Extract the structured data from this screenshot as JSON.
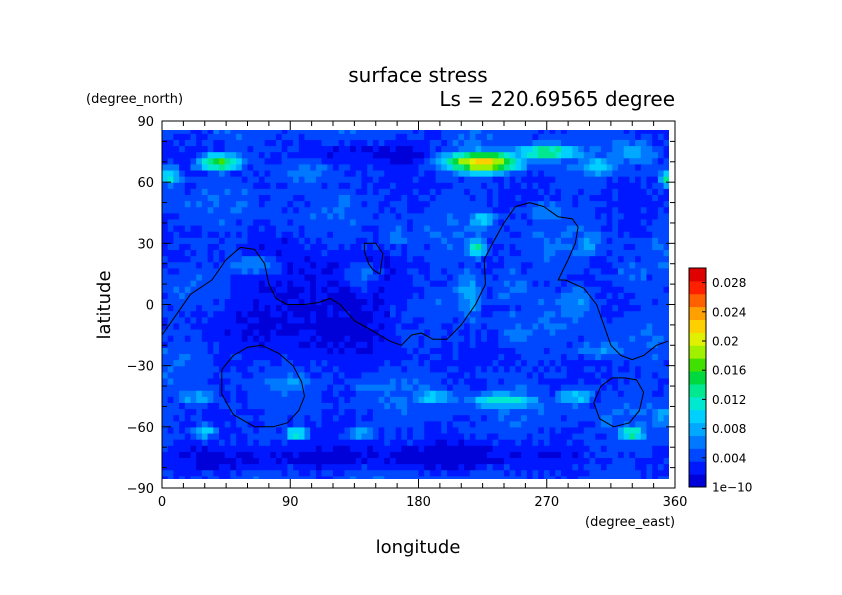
{
  "chart_data": {
    "type": "heatmap",
    "title": "surface stress",
    "subtitle": "Ls = 220.69565 degree",
    "xlabel": "longitude",
    "ylabel": "latitude",
    "xunit": "(degree_east)",
    "yunit": "(degree_north)",
    "xlim": [
      0,
      360
    ],
    "ylim": [
      -90,
      90
    ],
    "xticks": [
      "0",
      "90",
      "180",
      "270",
      "360"
    ],
    "yticks": [
      "90",
      "60",
      "30",
      "0",
      "−30",
      "−60",
      "−90"
    ],
    "colorbar": {
      "min": 0,
      "max": 0.03,
      "labels": [
        "0.028",
        "0.024",
        "0.02",
        "0.016",
        "0.012",
        "0.008",
        "0.004",
        "1e−10"
      ],
      "colors": [
        "#0000d8",
        "#0018ff",
        "#0048ff",
        "#0078ff",
        "#00a8ff",
        "#00d0ff",
        "#00e8d0",
        "#00e890",
        "#00d840",
        "#40e000",
        "#a0f000",
        "#e0f000",
        "#ffd000",
        "#ffa000",
        "#ff6000",
        "#ff2000",
        "#e00000"
      ]
    },
    "background_value": 0.004,
    "hotspots": [
      {
        "lon": 40,
        "lat": 70,
        "value": 0.016,
        "spread_lon": 18,
        "spread_lat": 5
      },
      {
        "lon": 5,
        "lat": 63,
        "value": 0.011,
        "spread_lon": 12,
        "spread_lat": 6
      },
      {
        "lon": 225,
        "lat": 70,
        "value": 0.022,
        "spread_lon": 30,
        "spread_lat": 6
      },
      {
        "lon": 270,
        "lat": 75,
        "value": 0.014,
        "spread_lon": 30,
        "spread_lat": 5
      },
      {
        "lon": 305,
        "lat": 68,
        "value": 0.01,
        "spread_lon": 18,
        "spread_lat": 6
      },
      {
        "lon": 355,
        "lat": 62,
        "value": 0.014,
        "spread_lon": 6,
        "spread_lat": 5
      },
      {
        "lon": 330,
        "lat": 75,
        "value": 0.008,
        "spread_lon": 25,
        "spread_lat": 8
      },
      {
        "lon": 100,
        "lat": 65,
        "value": 0.006,
        "spread_lon": 40,
        "spread_lat": 10
      },
      {
        "lon": 225,
        "lat": 42,
        "value": 0.011,
        "spread_lon": 12,
        "spread_lat": 5
      },
      {
        "lon": 270,
        "lat": 45,
        "value": 0.007,
        "spread_lon": 20,
        "spread_lat": 8
      },
      {
        "lon": 220,
        "lat": 28,
        "value": 0.013,
        "spread_lon": 8,
        "spread_lat": 6
      },
      {
        "lon": 215,
        "lat": 5,
        "value": 0.008,
        "spread_lon": 14,
        "spread_lat": 18
      },
      {
        "lon": 245,
        "lat": 10,
        "value": 0.006,
        "spread_lon": 20,
        "spread_lat": 15
      },
      {
        "lon": 290,
        "lat": 0,
        "value": 0.007,
        "spread_lon": 25,
        "spread_lat": 12
      },
      {
        "lon": 330,
        "lat": 15,
        "value": 0.006,
        "spread_lon": 20,
        "spread_lat": 12
      },
      {
        "lon": 300,
        "lat": 30,
        "value": 0.007,
        "spread_lon": 18,
        "spread_lat": 10
      },
      {
        "lon": 165,
        "lat": 35,
        "value": 0.005,
        "spread_lon": 25,
        "spread_lat": 15
      },
      {
        "lon": 250,
        "lat": -15,
        "value": 0.007,
        "spread_lon": 18,
        "spread_lat": 8
      },
      {
        "lon": 310,
        "lat": -22,
        "value": 0.007,
        "spread_lon": 25,
        "spread_lat": 6
      },
      {
        "lon": 240,
        "lat": -47,
        "value": 0.012,
        "spread_lon": 30,
        "spread_lat": 5
      },
      {
        "lon": 190,
        "lat": -45,
        "value": 0.009,
        "spread_lon": 22,
        "spread_lat": 6
      },
      {
        "lon": 290,
        "lat": -45,
        "value": 0.009,
        "spread_lon": 18,
        "spread_lat": 6
      },
      {
        "lon": 150,
        "lat": -40,
        "value": 0.006,
        "spread_lon": 25,
        "spread_lat": 8
      },
      {
        "lon": 25,
        "lat": -45,
        "value": 0.008,
        "spread_lon": 20,
        "spread_lat": 6
      },
      {
        "lon": 90,
        "lat": -38,
        "value": 0.007,
        "spread_lon": 30,
        "spread_lat": 6
      },
      {
        "lon": 30,
        "lat": -62,
        "value": 0.01,
        "spread_lon": 12,
        "spread_lat": 4
      },
      {
        "lon": 95,
        "lat": -63,
        "value": 0.014,
        "spread_lon": 10,
        "spread_lat": 3
      },
      {
        "lon": 140,
        "lat": -63,
        "value": 0.008,
        "spread_lon": 15,
        "spread_lat": 4
      },
      {
        "lon": 330,
        "lat": -63,
        "value": 0.016,
        "spread_lon": 10,
        "spread_lat": 3
      },
      {
        "lon": 350,
        "lat": -55,
        "value": 0.008,
        "spread_lon": 10,
        "spread_lat": 8
      },
      {
        "lon": 60,
        "lat": 20,
        "value": 0.006,
        "spread_lon": 30,
        "spread_lat": 8
      },
      {
        "lon": 140,
        "lat": 15,
        "value": 0.005,
        "spread_lon": 20,
        "spread_lat": 10
      },
      {
        "lon": 350,
        "lat": 30,
        "value": 0.006,
        "spread_lon": 12,
        "spread_lat": 10
      }
    ],
    "low_zones": [
      {
        "lon": 110,
        "lat": 0,
        "spread_lon": 60,
        "spread_lat": 25
      },
      {
        "lon": 60,
        "lat": -75,
        "spread_lon": 100,
        "spread_lat": 6
      },
      {
        "lon": 200,
        "lat": -75,
        "spread_lon": 60,
        "spread_lat": 6
      },
      {
        "lon": 150,
        "lat": 75,
        "spread_lon": 40,
        "spread_lat": 6
      }
    ],
    "contours": [
      [
        [
          0,
          -15
        ],
        [
          10,
          -5
        ],
        [
          20,
          5
        ],
        [
          35,
          12
        ],
        [
          45,
          22
        ],
        [
          55,
          28
        ],
        [
          65,
          27
        ],
        [
          72,
          20
        ],
        [
          75,
          10
        ],
        [
          80,
          3
        ],
        [
          88,
          0
        ],
        [
          100,
          0
        ],
        [
          110,
          1
        ],
        [
          118,
          3
        ],
        [
          125,
          0
        ],
        [
          135,
          -8
        ],
        [
          148,
          -13
        ],
        [
          160,
          -18
        ],
        [
          168,
          -20
        ],
        [
          175,
          -15
        ],
        [
          182,
          -14
        ],
        [
          190,
          -17
        ],
        [
          200,
          -17
        ],
        [
          210,
          -10
        ],
        [
          220,
          0
        ],
        [
          227,
          10
        ],
        [
          226,
          22
        ],
        [
          232,
          30
        ],
        [
          240,
          40
        ],
        [
          248,
          48
        ],
        [
          258,
          50
        ],
        [
          268,
          48
        ],
        [
          278,
          43
        ],
        [
          288,
          42
        ],
        [
          292,
          38
        ],
        [
          290,
          30
        ],
        [
          285,
          22
        ],
        [
          278,
          12
        ],
        [
          283,
          12
        ],
        [
          296,
          8
        ],
        [
          305,
          0
        ],
        [
          310,
          -10
        ],
        [
          315,
          -20
        ],
        [
          322,
          -25
        ],
        [
          330,
          -27
        ],
        [
          338,
          -25
        ],
        [
          347,
          -20
        ],
        [
          355,
          -18
        ]
      ],
      [
        [
          142,
          30
        ],
        [
          150,
          30
        ],
        [
          155,
          25
        ],
        [
          153,
          15
        ],
        [
          148,
          17
        ],
        [
          145,
          20
        ],
        [
          142,
          26
        ],
        [
          142,
          30
        ]
      ],
      [
        [
          70,
          -20
        ],
        [
          82,
          -24
        ],
        [
          92,
          -30
        ],
        [
          98,
          -38
        ],
        [
          100,
          -45
        ],
        [
          96,
          -52
        ],
        [
          88,
          -58
        ],
        [
          78,
          -60
        ],
        [
          65,
          -60
        ],
        [
          50,
          -54
        ],
        [
          42,
          -44
        ],
        [
          42,
          -32
        ],
        [
          50,
          -25
        ],
        [
          60,
          -21
        ],
        [
          70,
          -20
        ]
      ],
      [
        [
          325,
          -36
        ],
        [
          333,
          -37
        ],
        [
          338,
          -43
        ],
        [
          335,
          -52
        ],
        [
          328,
          -58
        ],
        [
          317,
          -60
        ],
        [
          307,
          -56
        ],
        [
          303,
          -48
        ],
        [
          308,
          -40
        ],
        [
          316,
          -36
        ],
        [
          325,
          -36
        ]
      ]
    ]
  }
}
